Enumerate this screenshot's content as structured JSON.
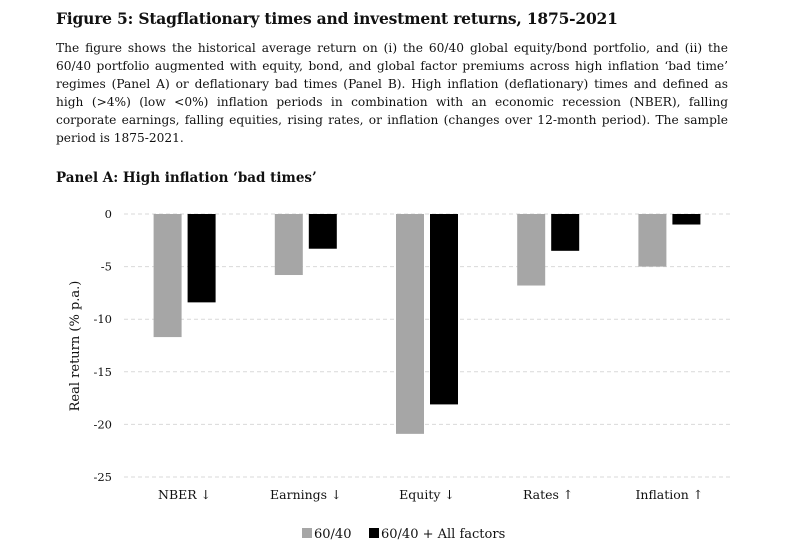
{
  "figure": {
    "title": "Figure 5: Stagflationary times and investment returns, 1875-2021",
    "caption": "The figure shows the historical average return on (i) the 60/40 global equity/bond portfolio, and (ii) the 60/40 portfolio augmented with equity, bond, and global factor premiums across high inflation ‘bad time’ regimes (Panel A) or deflationary bad times (Panel B). High inflation (deflationary) times and defined as high (>4%) (low <0%) inflation periods in combination with an economic recession (NBER), falling corporate earnings, falling equities, rising rates, or inflation (changes over 12-month period). The sample period is 1875-2021.",
    "panel_title": "Panel A: High inflation ‘bad times’"
  },
  "colors": {
    "series1": "#a6a6a6",
    "series2": "#000000",
    "grid": "#d9d9d9"
  },
  "chart_data": {
    "type": "bar",
    "title": "Panel A: High inflation ‘bad times’",
    "xlabel": "",
    "ylabel": "Real return (% p.a.)",
    "ylim": [
      -25,
      0
    ],
    "yticks": [
      0,
      -5,
      -10,
      -15,
      -20,
      -25
    ],
    "ytick_labels": [
      "0",
      "-5",
      "-10",
      "-15",
      "-20",
      "-25"
    ],
    "grid": true,
    "legend_position": "bottom-center",
    "categories": [
      "NBER ↓",
      "Earnings ↓",
      "Equity ↓",
      "Rates ↑",
      "Inflation ↑"
    ],
    "series": [
      {
        "name": "60/40",
        "values": [
          -11.7,
          -5.8,
          -20.9,
          -6.8,
          -5.0
        ]
      },
      {
        "name": "60/40 + All factors",
        "values": [
          -8.4,
          -3.3,
          -18.1,
          -3.5,
          -1.0
        ]
      }
    ]
  }
}
